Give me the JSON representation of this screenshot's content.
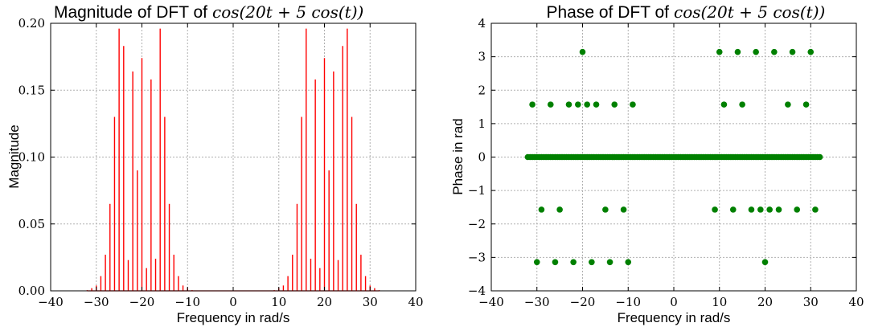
{
  "chart_data": [
    {
      "type": "bar",
      "title": "Magnitude of DFT of",
      "title_math": "cos(20t + 5 cos(t))",
      "xlabel": "Frequency in rad/s",
      "ylabel": "Magnitude",
      "xlim": [
        -40,
        40
      ],
      "ylim": [
        0,
        0.2
      ],
      "xticks": [
        "−40",
        "−30",
        "−20",
        "−10",
        "0",
        "10",
        "20",
        "30",
        "40"
      ],
      "yticks": [
        "0.00",
        "0.05",
        "0.10",
        "0.15",
        "0.20"
      ],
      "grid": true,
      "color": "#ff0000",
      "x": [
        -32,
        -31,
        -30,
        -29,
        -28,
        -27,
        -26,
        -25,
        -24,
        -23,
        -22,
        -21,
        -20,
        -19,
        -18,
        -17,
        -16,
        -15,
        -14,
        -13,
        -12,
        -11,
        -10,
        -9,
        -8,
        8,
        9,
        10,
        11,
        12,
        13,
        14,
        15,
        16,
        17,
        18,
        19,
        20,
        21,
        22,
        23,
        24,
        25,
        26,
        27,
        28,
        29,
        30,
        31,
        32
      ],
      "values": [
        0.0005,
        0.002,
        0.004,
        0.011,
        0.027,
        0.065,
        0.13,
        0.196,
        0.183,
        0.023,
        0.164,
        0.09,
        0.174,
        0.017,
        0.158,
        0.024,
        0.196,
        0.13,
        0.065,
        0.027,
        0.011,
        0.004,
        0.002,
        0.0005,
        0.0002,
        0.0002,
        0.0005,
        0.002,
        0.004,
        0.011,
        0.027,
        0.065,
        0.13,
        0.196,
        0.024,
        0.158,
        0.017,
        0.174,
        0.09,
        0.164,
        0.023,
        0.183,
        0.196,
        0.13,
        0.065,
        0.027,
        0.011,
        0.004,
        0.002,
        0.0005
      ]
    },
    {
      "type": "scatter",
      "title": "Phase of DFT of",
      "title_math": "cos(20t + 5 cos(t))",
      "xlabel": "Frequency in rad/s",
      "ylabel": "Phase in rad",
      "xlim": [
        -40,
        40
      ],
      "ylim": [
        -4,
        4
      ],
      "xticks": [
        "−40",
        "−30",
        "−20",
        "−10",
        "0",
        "10",
        "20",
        "30",
        "40"
      ],
      "yticks": [
        "−4",
        "−3",
        "−2",
        "−1",
        "0",
        "1",
        "2",
        "3",
        "4"
      ],
      "grid": true,
      "color": "#008000",
      "zero_band": [
        -32,
        32
      ],
      "points": [
        [
          -31,
          1.5708
        ],
        [
          -30,
          -3.1416
        ],
        [
          -29,
          -1.5708
        ],
        [
          -27,
          1.5708
        ],
        [
          -26,
          -3.1416
        ],
        [
          -25,
          -1.5708
        ],
        [
          -23,
          1.5708
        ],
        [
          -22,
          -3.1416
        ],
        [
          -21,
          1.5708
        ],
        [
          -20,
          3.1416
        ],
        [
          -19,
          1.5708
        ],
        [
          -18,
          -3.1416
        ],
        [
          -17,
          1.5708
        ],
        [
          -15,
          -1.5708
        ],
        [
          -14,
          -3.1416
        ],
        [
          -13,
          1.5708
        ],
        [
          -11,
          -1.5708
        ],
        [
          -10,
          -3.1416
        ],
        [
          -9,
          1.5708
        ],
        [
          9,
          -1.5708
        ],
        [
          10,
          3.1416
        ],
        [
          11,
          1.5708
        ],
        [
          13,
          -1.5708
        ],
        [
          14,
          3.1416
        ],
        [
          15,
          1.5708
        ],
        [
          17,
          -1.5708
        ],
        [
          18,
          3.1416
        ],
        [
          19,
          -1.5708
        ],
        [
          20,
          -3.1416
        ],
        [
          21,
          -1.5708
        ],
        [
          22,
          3.1416
        ],
        [
          23,
          -1.5708
        ],
        [
          25,
          1.5708
        ],
        [
          26,
          3.1416
        ],
        [
          27,
          -1.5708
        ],
        [
          29,
          1.5708
        ],
        [
          30,
          3.1416
        ],
        [
          31,
          -1.5708
        ]
      ]
    }
  ]
}
